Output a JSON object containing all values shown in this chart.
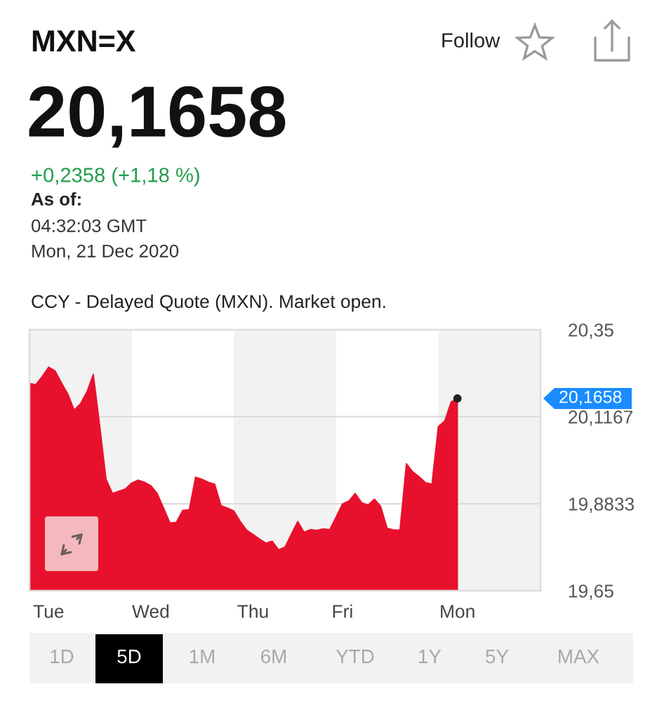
{
  "chart_data": {
    "type": "area",
    "title": "MXN=X",
    "subtitle": "20,1658",
    "annotations": [
      "Follow",
      "+0,2358 (+1,18 %)",
      "As of:",
      "04:32:03 GMT",
      "Mon, 21 Dec 2020",
      "CCY - Delayed Quote (MXN). Market open.",
      "1D",
      "5D",
      "1M",
      "6M",
      "YTD",
      "1Y",
      "5Y",
      "MAX",
      "20,1658"
    ],
    "categories": [
      null,
      null,
      null,
      "Tue",
      null,
      null,
      null,
      null,
      null,
      null,
      null,
      null,
      null,
      null,
      null,
      null,
      null,
      null,
      null,
      "Wed",
      null,
      null,
      null,
      null,
      null,
      null,
      null,
      null,
      null,
      null,
      null,
      null,
      null,
      null,
      null,
      "Thu",
      null,
      null,
      null,
      null,
      null,
      null,
      null,
      null,
      null,
      null,
      null,
      null,
      null,
      "Fri",
      null,
      null,
      null,
      null,
      null,
      null,
      null,
      null,
      null,
      null,
      null,
      null,
      null,
      null,
      null,
      null,
      null,
      "Mon",
      null,
      null,
      null,
      null,
      null,
      null,
      null,
      null,
      null,
      null,
      null,
      null
    ],
    "series": [
      {
        "color": "#e8112d",
        "values": [
          20.206,
          20.203,
          20.225,
          20.25,
          20.24,
          20.208,
          20.178,
          20.135,
          20.152,
          20.184,
          20.231,
          20.093,
          19.949,
          19.911,
          19.917,
          19.923,
          19.939,
          19.947,
          19.941,
          19.932,
          19.911,
          19.872,
          19.832,
          19.834,
          19.866,
          19.867,
          19.955,
          19.949,
          19.941,
          19.936,
          19.878,
          19.872,
          19.864,
          19.836,
          19.813,
          19.801,
          19.789,
          19.778,
          19.783,
          19.76,
          19.767,
          19.802,
          19.836,
          19.807,
          19.814,
          19.812,
          19.816,
          19.814,
          19.848,
          19.883,
          19.891,
          19.911,
          19.886,
          19.88,
          19.896,
          19.876,
          19.818,
          19.813,
          19.813,
          19.991,
          19.969,
          19.956,
          19.94,
          19.936,
          20.09,
          20.105,
          20.156,
          20.1658,
          null,
          null,
          null,
          null,
          null,
          null,
          null,
          null,
          null,
          null,
          null,
          null
        ]
      },
      {
        "type": "scatter",
        "color": "#222222",
        "marker": "circle",
        "values": [
          null,
          null,
          null,
          null,
          null,
          null,
          null,
          null,
          null,
          null,
          null,
          null,
          null,
          null,
          null,
          null,
          null,
          null,
          null,
          null,
          null,
          null,
          null,
          null,
          null,
          null,
          null,
          null,
          null,
          null,
          null,
          null,
          null,
          null,
          null,
          null,
          null,
          null,
          null,
          null,
          null,
          null,
          null,
          null,
          null,
          null,
          null,
          null,
          null,
          null,
          null,
          null,
          null,
          null,
          null,
          null,
          null,
          null,
          null,
          null,
          null,
          null,
          null,
          null,
          null,
          null,
          null,
          20.1658,
          null,
          null,
          null,
          null,
          null,
          null,
          null,
          null,
          null,
          null,
          null,
          null
        ]
      }
    ],
    "ylim": [
      19.65,
      20.35
    ],
    "yticks": [
      {
        "value": 19.65,
        "label": "19,65"
      },
      {
        "value": 19.8833,
        "label": "19,8833"
      },
      {
        "value": 20.1167,
        "label": "20,1167"
      },
      {
        "value": 20.35,
        "label": "20,35"
      }
    ],
    "grid": "y"
  }
}
